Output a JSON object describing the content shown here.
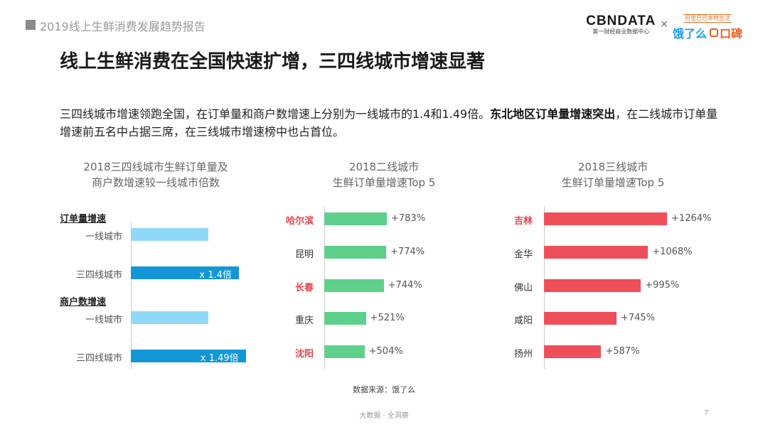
{
  "header": {
    "report_title": "2019线上生鲜消费发展趋势报告"
  },
  "logo": {
    "cbn": "CBNDATA",
    "cbn_sub": "第一财经商业数据中心",
    "times": "×",
    "slogan": "阿里巴巴本地生活",
    "ele": "饿了么",
    "koubei": "口碑"
  },
  "page_heading": "线上生鲜消费在全国快速扩增，三四线城市增速显著",
  "summary": {
    "part1": "三四线城市增速领跑全国，在订单量和商户数增速上分别为一线城市的1.4和1.49倍。",
    "bold": "东北地区订单量增速突出",
    "part2": "，在二线城市订单量增速前五名中占据三席，在三线城市增速榜中也占首位。"
  },
  "colors": {
    "light_blue": "#8fd9f8",
    "dark_blue": "#1296d6",
    "green": "#5ed08b",
    "red": "#ee4f5a",
    "highlight_text": "#e5434b"
  },
  "chart_data": [
    {
      "type": "bar",
      "orientation": "horizontal",
      "title": [
        "2018三四线城市生鲜订单量及",
        "商户数增速较一线城市倍数"
      ],
      "groups": [
        {
          "name": "订单量增速",
          "categories": [
            "一线城市",
            "三四线城市"
          ],
          "values": [
            1,
            1.4
          ],
          "labels": [
            "",
            "x 1.4倍"
          ]
        },
        {
          "name": "商户数增速",
          "categories": [
            "一线城市",
            "三四线城市"
          ],
          "values": [
            1,
            1.49
          ],
          "labels": [
            "",
            "x 1.49倍"
          ]
        }
      ]
    },
    {
      "type": "bar",
      "orientation": "horizontal",
      "title": [
        "2018二线城市",
        "生鲜订单量增速Top 5"
      ],
      "categories": [
        "哈尔滨",
        "昆明",
        "长春",
        "重庆",
        "沈阳"
      ],
      "values": [
        783,
        774,
        744,
        521,
        504
      ],
      "labels": [
        "+783%",
        "+774%",
        "+744%",
        "+521%",
        "+504%"
      ],
      "highlighted": [
        true,
        false,
        true,
        false,
        true
      ]
    },
    {
      "type": "bar",
      "orientation": "horizontal",
      "title": [
        "2018三线城市",
        "生鲜订单量增速Top 5"
      ],
      "categories": [
        "吉林",
        "金华",
        "佛山",
        "咸阳",
        "扬州"
      ],
      "values": [
        1264,
        1068,
        995,
        745,
        587
      ],
      "labels": [
        "+1264%",
        "+1068%",
        "+995%",
        "+745%",
        "+587%"
      ],
      "highlighted": [
        true,
        false,
        false,
        false,
        false
      ]
    }
  ],
  "source": "数据来源：饿了么",
  "footer": "大数据 · 全洞察",
  "page_number": "7"
}
